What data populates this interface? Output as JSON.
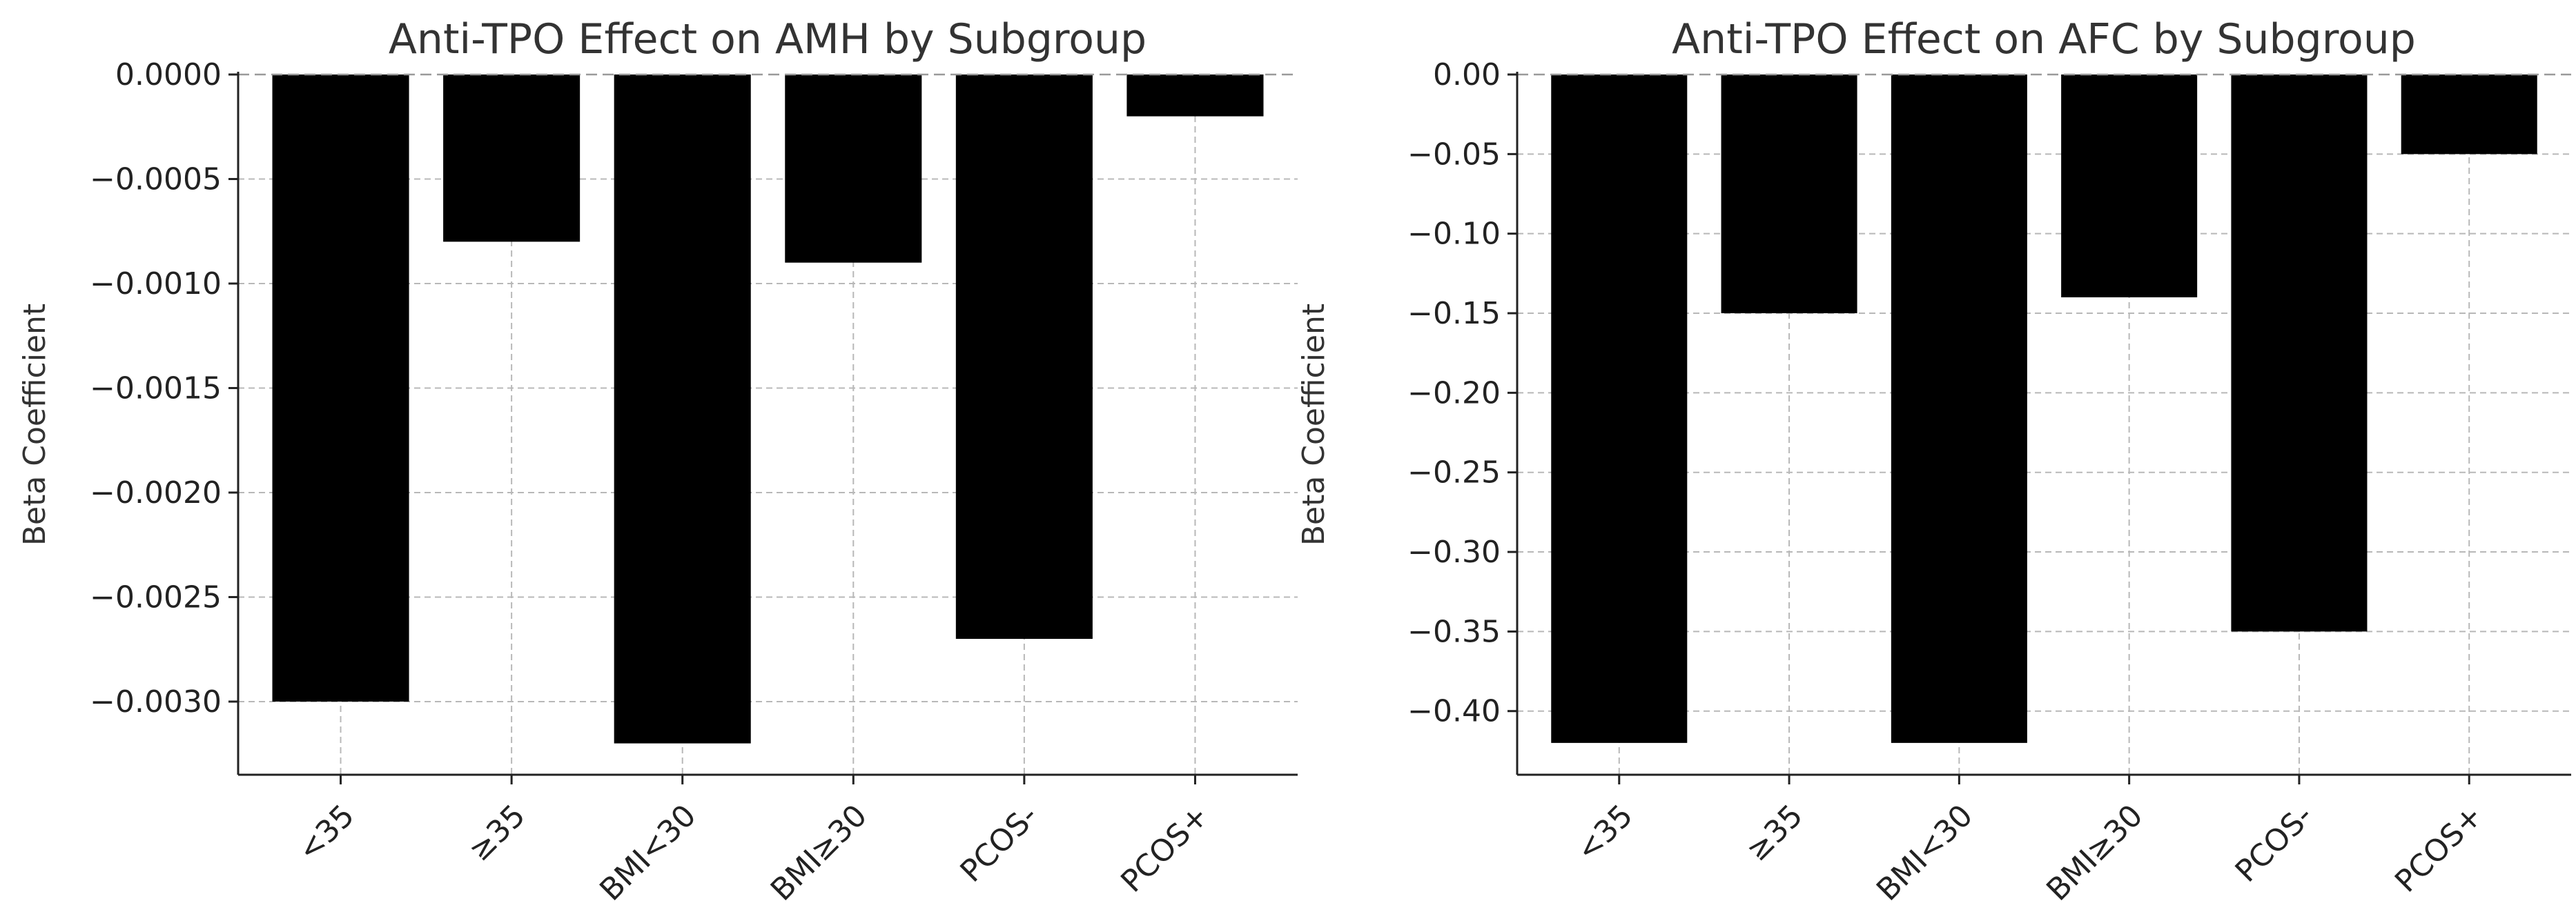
{
  "chart_data": [
    {
      "type": "bar",
      "title": "Anti-TPO Effect on AMH by Subgroup",
      "xlabel": "",
      "ylabel": "Beta Coefficient",
      "categories": [
        "<35",
        "≥35",
        "BMI<30",
        "BMI≥30",
        "PCOS-",
        "PCOS+"
      ],
      "values": [
        -0.003,
        -0.0008,
        -0.0032,
        -0.0009,
        -0.0027,
        -0.0002
      ],
      "ylim": [
        -0.00335,
        0.0
      ],
      "yticks": [
        0.0,
        -0.0005,
        -0.001,
        -0.0015,
        -0.002,
        -0.0025,
        -0.003
      ],
      "ytick_labels": [
        "0.0000",
        "−0.0005",
        "−0.0010",
        "−0.0015",
        "−0.0020",
        "−0.0025",
        "−0.0030"
      ],
      "bar_color": "#000000",
      "grid": true,
      "legend": "none"
    },
    {
      "type": "bar",
      "title": "Anti-TPO Effect on AFC by Subgroup",
      "xlabel": "",
      "ylabel": "Beta Coefficient",
      "categories": [
        "<35",
        "≥35",
        "BMI<30",
        "BMI≥30",
        "PCOS-",
        "PCOS+"
      ],
      "values": [
        -0.42,
        -0.15,
        -0.42,
        -0.14,
        -0.35,
        -0.05
      ],
      "ylim": [
        -0.44,
        0.0
      ],
      "yticks": [
        0.0,
        -0.05,
        -0.1,
        -0.15,
        -0.2,
        -0.25,
        -0.3,
        -0.35,
        -0.4
      ],
      "ytick_labels": [
        "0.00",
        "−0.05",
        "−0.10",
        "−0.15",
        "−0.20",
        "−0.25",
        "−0.30",
        "−0.35",
        "−0.40"
      ],
      "bar_color": "#000000",
      "grid": true,
      "legend": "none"
    }
  ]
}
